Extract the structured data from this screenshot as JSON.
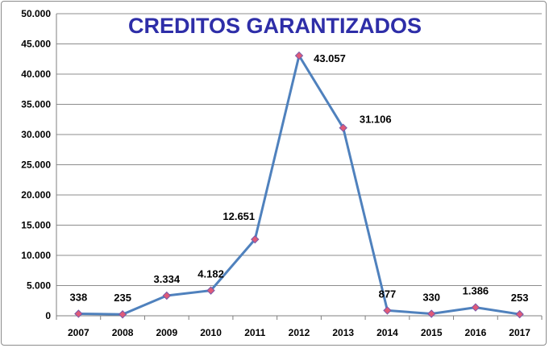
{
  "chart_data": {
    "type": "line",
    "title": "CREDITOS GARANTIZADOS",
    "xlabel": "",
    "ylabel": "",
    "categories": [
      "2007",
      "2008",
      "2009",
      "2010",
      "2011",
      "2012",
      "2013",
      "2014",
      "2015",
      "2016",
      "2017"
    ],
    "series": [
      {
        "values": [
          338,
          235,
          3334,
          4182,
          12651,
          43057,
          31106,
          877,
          330,
          1386,
          253
        ],
        "labels": [
          "338",
          "235",
          "3.334",
          "4.182",
          "12.651",
          "43.057",
          "31.106",
          "877",
          "330",
          "1.386",
          "253"
        ]
      }
    ],
    "ylim": [
      0,
      50000
    ],
    "yticks": [
      0,
      5000,
      10000,
      15000,
      20000,
      25000,
      30000,
      35000,
      40000,
      45000,
      50000
    ],
    "ytick_labels": [
      "0",
      "5.000",
      "10.000",
      "15.000",
      "20.000",
      "25.000",
      "30.000",
      "35.000",
      "40.000",
      "45.000",
      "50.000"
    ],
    "grid": true,
    "colors": {
      "line": "#4f81bd",
      "marker_fill": "#e05a78",
      "grid": "#8c8c8c",
      "title": "#2e2ea8"
    }
  }
}
